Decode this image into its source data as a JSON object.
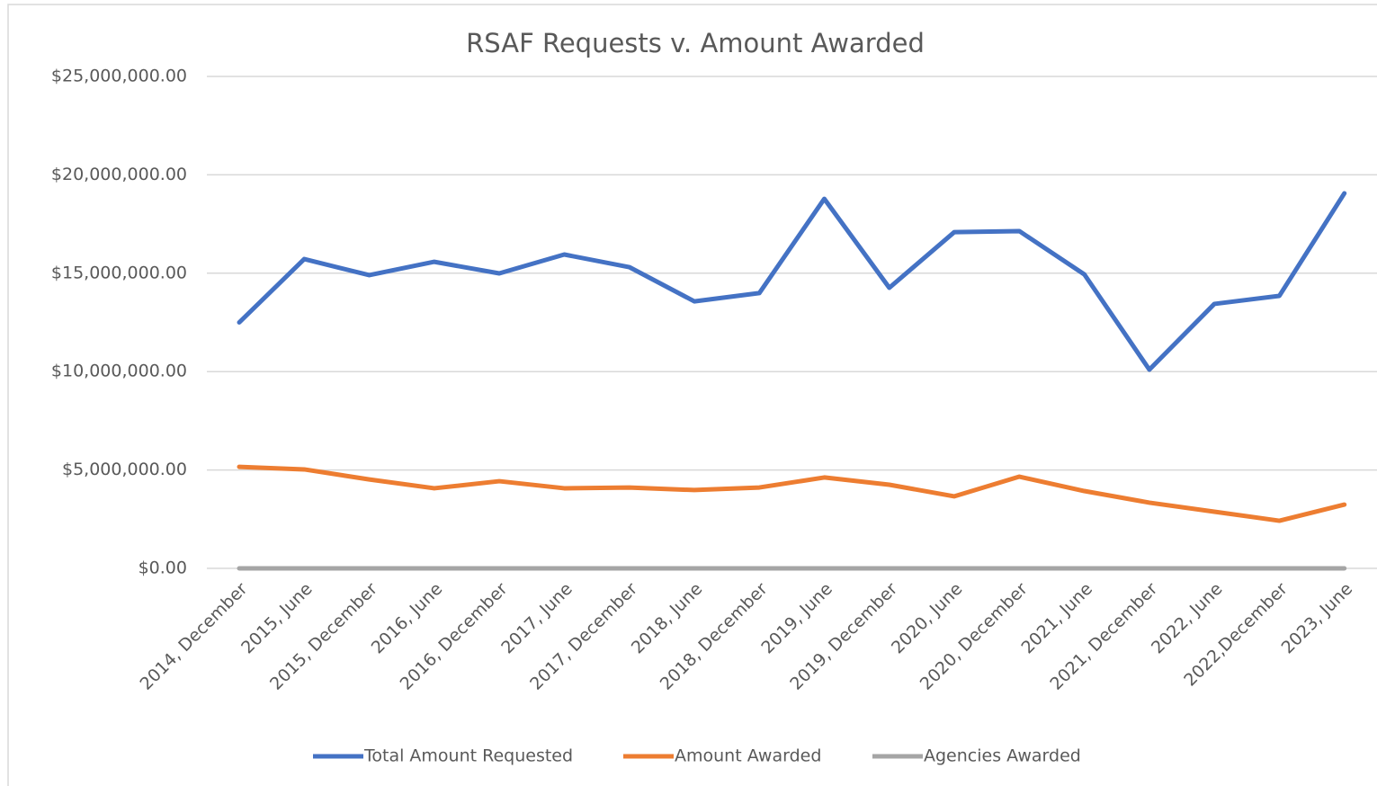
{
  "chart_data": {
    "type": "line",
    "title": "RSAF Requests v. Amount Awarded",
    "categories": [
      "2014, December",
      "2015, June",
      "2015, December",
      "2016, June",
      "2016, December",
      "2017, June",
      "2017, December",
      "2018, June",
      "2018, December",
      "2019, June",
      "2019, December",
      "2020, June",
      "2020, December",
      "2021, June",
      "2021, December",
      "2022, June",
      "2022,December",
      "2023, June"
    ],
    "series": [
      {
        "name": "Total Amount Requested",
        "color": "#4472c4",
        "values": [
          12500000,
          15720000,
          14900000,
          15580000,
          14990000,
          15950000,
          15310000,
          13570000,
          13990000,
          18780000,
          14260000,
          17090000,
          17140000,
          14940000,
          10100000,
          13440000,
          13850000,
          19060000
        ]
      },
      {
        "name": "Amount Awarded",
        "color": "#ed7d31",
        "values": [
          5160000,
          5030000,
          4520000,
          4070000,
          4430000,
          4070000,
          4110000,
          3980000,
          4110000,
          4620000,
          4250000,
          3660000,
          4660000,
          3930000,
          3340000,
          2880000,
          2420000,
          3240000
        ]
      },
      {
        "name": "Agencies Awarded",
        "color": "#a5a5a5",
        "values": [
          0,
          0,
          0,
          0,
          0,
          0,
          0,
          0,
          0,
          0,
          0,
          0,
          0,
          0,
          0,
          0,
          0,
          0
        ]
      }
    ],
    "ylim": [
      0,
      25000000
    ],
    "yticks": [
      {
        "value": 0,
        "label": "$0.00"
      },
      {
        "value": 5000000,
        "label": "$5,000,000.00"
      },
      {
        "value": 10000000,
        "label": "$10,000,000.00"
      },
      {
        "value": 15000000,
        "label": "$15,000,000.00"
      },
      {
        "value": 20000000,
        "label": "$20,000,000.00"
      },
      {
        "value": 25000000,
        "label": "$25,000,000.00"
      }
    ],
    "grid": true,
    "legend": "bottom"
  }
}
